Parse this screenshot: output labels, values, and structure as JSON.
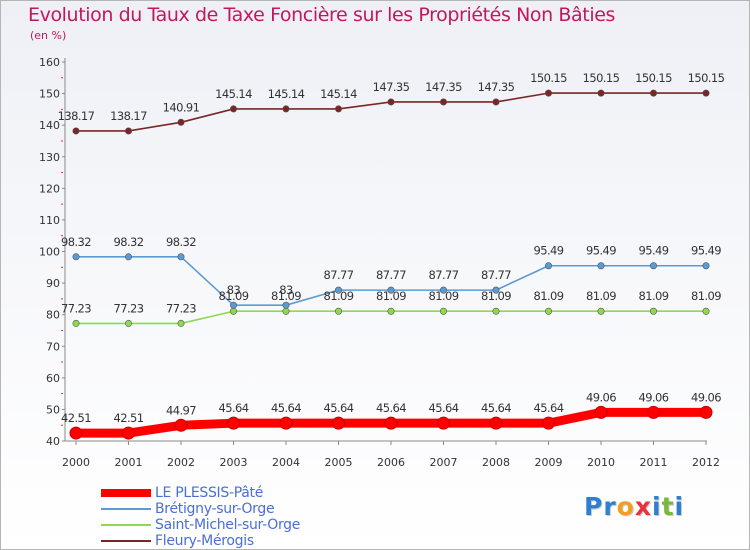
{
  "title": "Evolution du Taux de Taxe Foncière sur les Propriétés Non Bâties",
  "subtitle": "(en %)",
  "logo": {
    "text": "Proxiti",
    "letters": [
      {
        "ch": "P",
        "color": "#2f7fd1"
      },
      {
        "ch": "r",
        "color": "#2f7fd1"
      },
      {
        "ch": "o",
        "color": "#f0a020"
      },
      {
        "ch": "x",
        "color": "#e8333f"
      },
      {
        "ch": "i",
        "color": "#2f7fd1"
      },
      {
        "ch": "t",
        "color": "#7ab83b"
      },
      {
        "ch": "i",
        "color": "#2f7fd1"
      }
    ]
  },
  "chart_data": {
    "type": "line",
    "title": "Evolution du Taux de Taxe Foncière sur les Propriétés Non Bâties",
    "ylabel": "(en %)",
    "xlabel": "",
    "ylim": [
      40,
      160
    ],
    "yticks": [
      40,
      50,
      60,
      70,
      80,
      90,
      100,
      110,
      120,
      130,
      140,
      150,
      160
    ],
    "grid": false,
    "legend_position": "bottom-left",
    "categories": [
      "2000",
      "2001",
      "2002",
      "2003",
      "2004",
      "2005",
      "2006",
      "2007",
      "2008",
      "2009",
      "2010",
      "2011",
      "2012"
    ],
    "series": [
      {
        "name": "LE PLESSIS-Pâté",
        "color": "#ff0000",
        "labels": [
          "42.51",
          "42.51",
          "44.97",
          "45.64",
          "45.64",
          "45.64",
          "45.64",
          "45.64",
          "45.64",
          "45.64",
          "49.06",
          "49.06",
          "49.06"
        ],
        "values": [
          42.51,
          42.51,
          44.97,
          45.64,
          45.64,
          45.64,
          45.64,
          45.64,
          45.64,
          45.64,
          49.06,
          49.06,
          49.06
        ]
      },
      {
        "name": "Brétigny-sur-Orge",
        "color": "#5b9bd5",
        "labels": [
          "98.32",
          "98.32",
          "98.32",
          "83",
          "83",
          "87.77",
          "87.77",
          "87.77",
          "87.77",
          "95.49",
          "95.49",
          "95.49",
          "95.49"
        ],
        "values": [
          98.32,
          98.32,
          98.32,
          83,
          83,
          87.77,
          87.77,
          87.77,
          87.77,
          95.49,
          95.49,
          95.49,
          95.49
        ]
      },
      {
        "name": "Saint-Michel-sur-Orge",
        "color": "#8ed94f",
        "labels": [
          "77.23",
          "77.23",
          "77.23",
          "81.09",
          "81.09",
          "81.09",
          "81.09",
          "81.09",
          "81.09",
          "81.09",
          "81.09",
          "81.09",
          "81.09"
        ],
        "values": [
          77.23,
          77.23,
          77.23,
          81.09,
          81.09,
          81.09,
          81.09,
          81.09,
          81.09,
          81.09,
          81.09,
          81.09,
          81.09
        ]
      },
      {
        "name": "Fleury-Mérogis",
        "color": "#7a2626",
        "labels": [
          "138.17",
          "138.17",
          "140.91",
          "145.14",
          "145.14",
          "145.14",
          "147.35",
          "147.35",
          "147.35",
          "150.15",
          "150.15",
          "150.15",
          "150.15"
        ],
        "values": [
          138.17,
          138.17,
          140.91,
          145.14,
          145.14,
          145.14,
          147.35,
          147.35,
          147.35,
          150.15,
          150.15,
          150.15,
          150.15
        ]
      }
    ]
  }
}
